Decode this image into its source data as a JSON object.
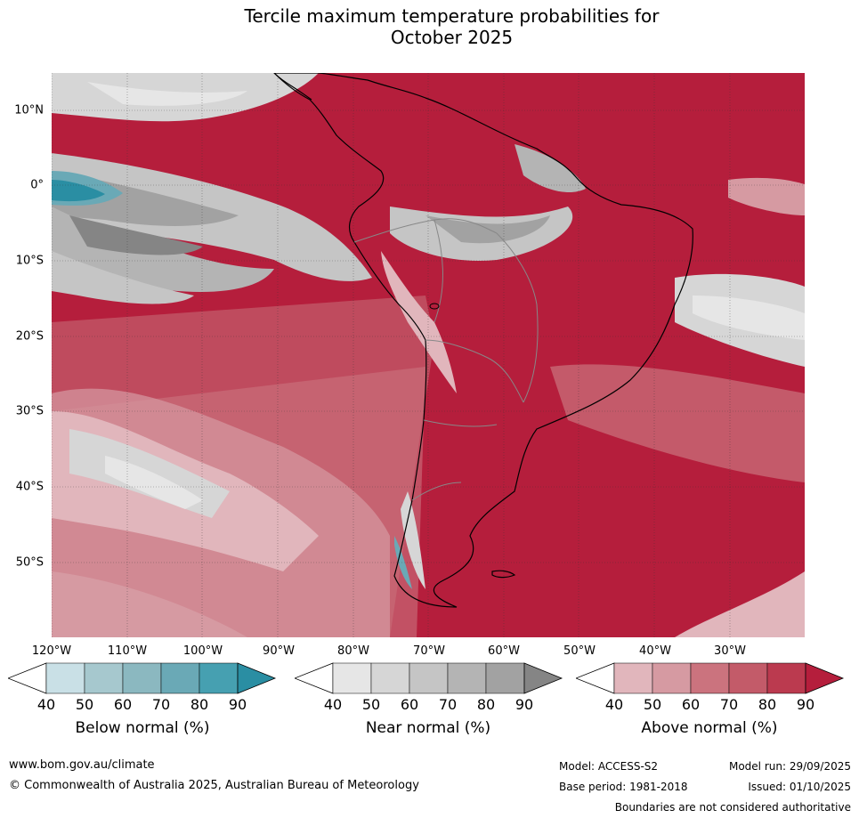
{
  "title_line1": "Tercile maximum temperature probabilities for",
  "title_line2": "October 2025",
  "lat_labels": [
    "10°N",
    "0°",
    "10°S",
    "20°S",
    "30°S",
    "40°S",
    "50°S"
  ],
  "lon_labels": [
    "120°W",
    "110°W",
    "100°W",
    "90°W",
    "80°W",
    "70°W",
    "60°W",
    "50°W",
    "40°W",
    "30°W"
  ],
  "colorbars": [
    {
      "label": "Below normal (%)",
      "ticks": [
        "40",
        "50",
        "60",
        "70",
        "80",
        "90"
      ],
      "colors": [
        "#c9e0e6",
        "#a6c8ce",
        "#8bb8c0",
        "#6aa9b6",
        "#46a0b1",
        "#2a8ea3"
      ]
    },
    {
      "label": "Near normal (%)",
      "ticks": [
        "40",
        "50",
        "60",
        "70",
        "80",
        "90"
      ],
      "colors": [
        "#e6e6e6",
        "#d6d6d6",
        "#c5c5c5",
        "#b4b4b4",
        "#a2a2a2",
        "#858585"
      ]
    },
    {
      "label": "Above normal (%)",
      "ticks": [
        "40",
        "50",
        "60",
        "70",
        "80",
        "90"
      ],
      "colors": [
        "#e1b6bc",
        "#d69aa2",
        "#cb737e",
        "#c35b69",
        "#bb3a4f",
        "#b51e3c"
      ]
    }
  ],
  "footer": {
    "website": "www.bom.gov.au/climate",
    "copyright": "© Commonwealth of Australia 2025, Australian Bureau of Meteorology",
    "model": "Model: ACCESS-S2",
    "model_run": "Model run: 29/09/2025",
    "base_period": "Base period: 1981-2018",
    "issued": "Issued: 01/10/2025",
    "disclaimer": "Boundaries are not considered authoritative"
  }
}
